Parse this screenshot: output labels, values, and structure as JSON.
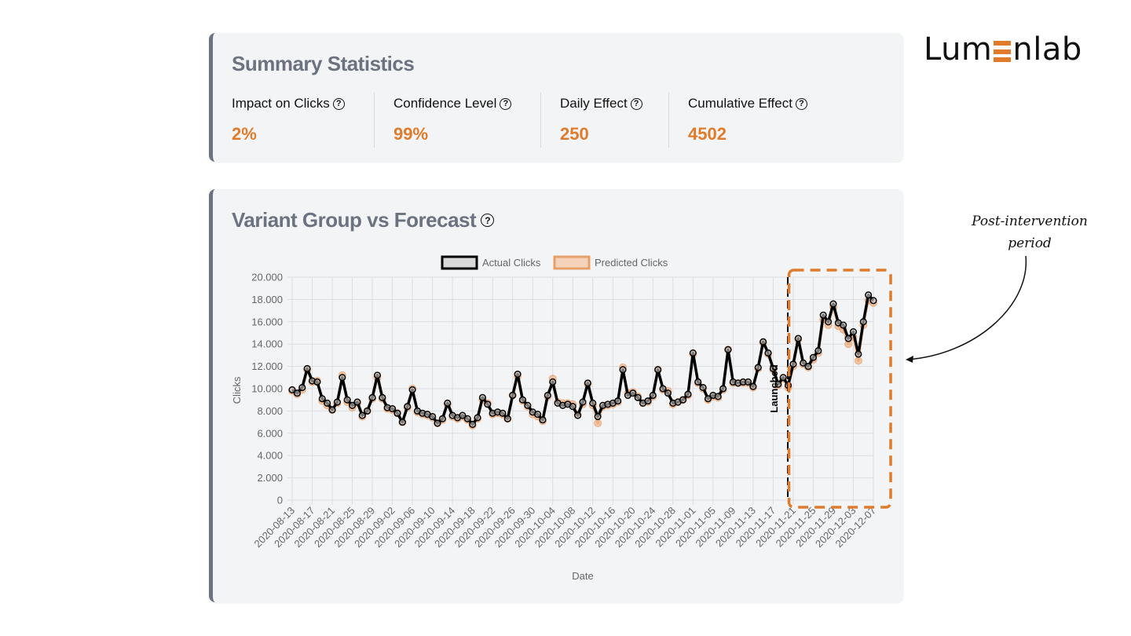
{
  "brand": {
    "name_prefix": "Lum",
    "name_suffix": "nlab",
    "accent_color": "#e07b2c"
  },
  "summary": {
    "title": "Summary Statistics",
    "stats": [
      {
        "label": "Impact on Clicks",
        "value": "2%"
      },
      {
        "label": "Confidence Level",
        "value": "99%"
      },
      {
        "label": "Daily Effect",
        "value": "250"
      },
      {
        "label": "Cumulative Effect",
        "value": "4502"
      }
    ]
  },
  "chart_card": {
    "title": "Variant Group vs Forecast"
  },
  "annotation": {
    "line1": "Post-intervention",
    "line2": "period"
  },
  "icons": {
    "help": "?"
  },
  "chart_data": {
    "type": "line",
    "title": "Variant Group vs Forecast",
    "xlabel": "Date",
    "ylabel": "Clicks",
    "ylim": [
      0,
      20000
    ],
    "y_ticks": [
      0,
      2000,
      4000,
      6000,
      8000,
      10000,
      12000,
      14000,
      16000,
      18000,
      20000
    ],
    "y_tick_labels": [
      "0",
      "2.000",
      "4.000",
      "6.000",
      "8.000",
      "10.000",
      "12.000",
      "14.000",
      "16.000",
      "18.000",
      "20.000"
    ],
    "start_date": "2020-08-13",
    "x_tick_labels": [
      "2020-08-13",
      "2020-08-17",
      "2020-08-21",
      "2020-08-25",
      "2020-08-29",
      "2020-09-02",
      "2020-09-06",
      "2020-09-10",
      "2020-09-14",
      "2020-09-18",
      "2020-09-22",
      "2020-09-26",
      "2020-09-30",
      "2020-10-04",
      "2020-10-08",
      "2020-10-12",
      "2020-10-16",
      "2020-10-20",
      "2020-10-24",
      "2020-10-28",
      "2020-11-01",
      "2020-11-05",
      "2020-11-09",
      "2020-11-13",
      "2020-11-17",
      "2020-11-21",
      "2020-11-25",
      "2020-11-29",
      "2020-12-03",
      "2020-12-07"
    ],
    "grid": true,
    "legend_position": "top-center",
    "annotations": [
      {
        "type": "vertical-line",
        "date": "2020-11-20",
        "label": "Launched"
      },
      {
        "type": "highlight-box",
        "from": "2020-11-20",
        "to": "2020-12-07",
        "label": "Post-intervention period"
      }
    ],
    "series": [
      {
        "name": "Actual Clicks",
        "color": "#000000",
        "values": [
          9900,
          9600,
          10100,
          11800,
          10700,
          10600,
          9100,
          8700,
          8100,
          8800,
          11000,
          9000,
          8500,
          8800,
          7600,
          8000,
          9200,
          11200,
          9200,
          8300,
          8200,
          7800,
          7000,
          8400,
          9900,
          8000,
          7800,
          7700,
          7500,
          6900,
          7300,
          8700,
          7600,
          7400,
          7600,
          7300,
          6800,
          7400,
          9200,
          8600,
          7800,
          7900,
          7800,
          7300,
          9400,
          11300,
          9000,
          8500,
          7900,
          7700,
          7200,
          9400,
          10600,
          8700,
          8500,
          8600,
          8400,
          7600,
          8800,
          10500,
          8700,
          7500,
          8500,
          8600,
          8700,
          8900,
          11700,
          9400,
          9600,
          9200,
          8700,
          8900,
          9400,
          11700,
          10000,
          9600,
          8700,
          8800,
          9000,
          9500,
          13200,
          10600,
          10100,
          9100,
          9400,
          9300,
          10000,
          13500,
          10600,
          10500,
          10600,
          10600,
          10200,
          11900,
          14200,
          13200,
          11800,
          10400,
          11000,
          10300,
          12200,
          14500,
          12300,
          12000,
          12800,
          13400,
          16600,
          16000,
          17600,
          15900,
          15700,
          14500,
          15100,
          13100,
          16000,
          18400,
          17900
        ]
      },
      {
        "name": "Predicted Clicks",
        "color": "#e8a06a",
        "values": [
          9800,
          9500,
          9900,
          11700,
          10600,
          10700,
          8900,
          8500,
          8100,
          8700,
          11200,
          8800,
          8300,
          8700,
          7500,
          8000,
          9100,
          11000,
          9100,
          8200,
          8100,
          7800,
          7000,
          8300,
          10000,
          7900,
          7700,
          7600,
          7400,
          6900,
          7200,
          8600,
          7500,
          7300,
          7500,
          7200,
          6700,
          7300,
          9000,
          8700,
          7700,
          7800,
          7700,
          7300,
          9400,
          11100,
          8900,
          8400,
          7700,
          7500,
          7100,
          9300,
          10900,
          8800,
          8700,
          8700,
          8600,
          7700,
          8600,
          10400,
          8500,
          6900,
          8400,
          8500,
          8600,
          8800,
          11900,
          9600,
          9700,
          9300,
          8700,
          8800,
          9300,
          11700,
          9900,
          9800,
          8600,
          8800,
          9000,
          9400,
          13100,
          10500,
          10000,
          9000,
          9300,
          9200,
          9900,
          13500,
          10500,
          10500,
          10500,
          10500,
          10100,
          11800,
          14100,
          13100,
          11700,
          10300,
          10900,
          10100,
          12000,
          14400,
          12200,
          11900,
          12600,
          13200,
          16200,
          15700,
          17300,
          15600,
          15300,
          14000,
          14600,
          12500,
          15700,
          17900,
          17700
        ]
      }
    ]
  }
}
